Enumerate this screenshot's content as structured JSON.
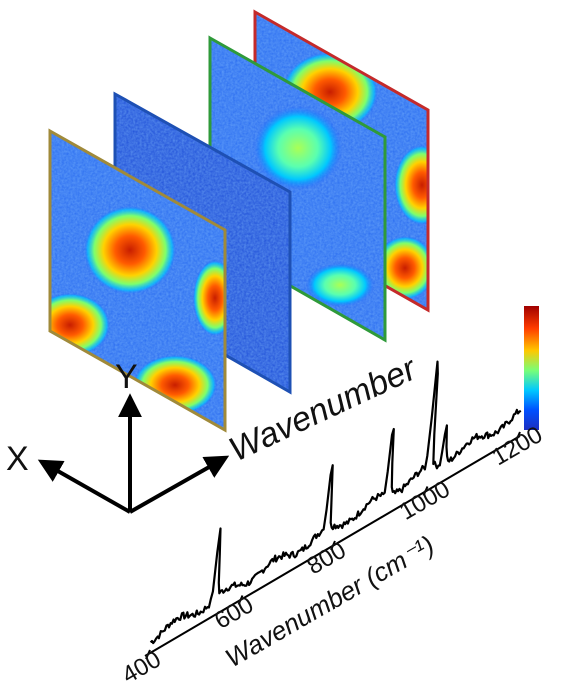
{
  "axes": {
    "x_label": "X",
    "y_label": "Y",
    "z_label": "Wavenumber"
  },
  "spectrum": {
    "xlabel": "Wavenumber (cm⁻¹)",
    "x_range": [
      400,
      1200
    ],
    "ticks": [
      {
        "value": 400,
        "label": "400"
      },
      {
        "value": 600,
        "label": "600"
      },
      {
        "value": 800,
        "label": "800"
      },
      {
        "value": 1000,
        "label": "1000"
      },
      {
        "value": 1200,
        "label": "1200"
      }
    ],
    "peaks": [
      {
        "x": 538,
        "height": 1.0
      },
      {
        "x": 780,
        "height": 0.95
      },
      {
        "x": 912,
        "height": 1.0
      },
      {
        "x": 1001,
        "height": 1.6
      },
      {
        "x": 1032,
        "height": 0.55
      }
    ]
  },
  "colors": {
    "frame_1": "#a08a3a",
    "frame_2": "#1e50b4",
    "frame_3": "#2f9a3a",
    "frame_4": "#c42a2a",
    "spectrum_line": "#000000"
  },
  "colorbar": [
    "#a00000",
    "#ff3c00",
    "#ffc800",
    "#78ff78",
    "#00c8ff",
    "#0050ff",
    "#1c2fc0"
  ]
}
